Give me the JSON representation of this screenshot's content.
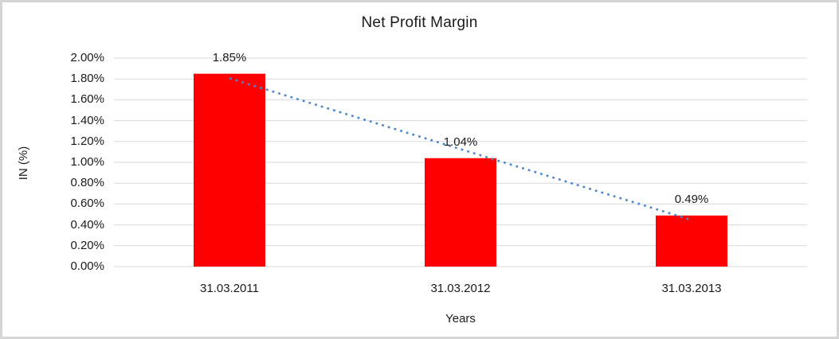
{
  "chart_data": {
    "type": "bar",
    "title": "Net Profit Margin",
    "categories": [
      "31.03.2011",
      "31.03.2012",
      "31.03.2013"
    ],
    "values": [
      1.85,
      1.04,
      0.49
    ],
    "data_labels": [
      "1.85%",
      "1.04%",
      "0.49%"
    ],
    "xlabel": "Years",
    "ylabel": "IN (%)",
    "ylim": [
      0,
      2
    ],
    "ytick_step": 0.2,
    "ytick_suffix": "%",
    "grid": true,
    "legend": "none",
    "bar_color": "#ff0000",
    "gridline_color": "#d9d9d9",
    "text_color": "#1a1a1a",
    "background_color": "#ffffff",
    "frame_border_color": "#d5d5d5",
    "trendline": {
      "type": "linear",
      "style": "dotted",
      "color": "#4e86c8"
    }
  }
}
